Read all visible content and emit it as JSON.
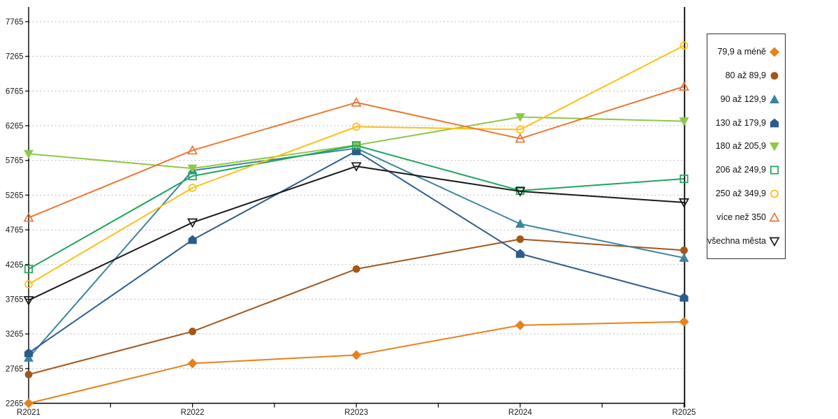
{
  "chart_data": {
    "type": "line",
    "title": "",
    "xlabel": "",
    "ylabel": "",
    "categories": [
      "R2021",
      "R2022",
      "R2023",
      "R2024",
      "R2025"
    ],
    "y_ticks": [
      2265,
      2765,
      3265,
      3765,
      4265,
      4765,
      5265,
      5765,
      6265,
      6765,
      7265,
      7765
    ],
    "ylim": [
      2265,
      7765
    ],
    "grid": "horizontal-dotted",
    "gridline_color": "#b9b9b9",
    "axis_color": "#000000",
    "legend_position": "right",
    "series": [
      {
        "name": "79,9 a méně",
        "marker": "diamond",
        "fill": "solid",
        "color": "#e8811c",
        "values": [
          2265,
          2840,
          2960,
          3390,
          3440
        ]
      },
      {
        "name": "80 až 89,9",
        "marker": "circle",
        "fill": "solid",
        "color": "#a3571c",
        "values": [
          2680,
          3300,
          4200,
          4630,
          4470
        ]
      },
      {
        "name": "90 až 129,9",
        "marker": "triangle-up",
        "fill": "solid",
        "color": "#3d84a0",
        "values": [
          2920,
          5620,
          5940,
          4850,
          4360
        ]
      },
      {
        "name": "130 až 179,9",
        "marker": "pentagon",
        "fill": "solid",
        "color": "#2d5c8c",
        "values": [
          2990,
          4620,
          5900,
          4420,
          3790
        ]
      },
      {
        "name": "180 až 205,9",
        "marker": "triangle-down",
        "fill": "solid",
        "color": "#8ec74a",
        "values": [
          5860,
          5650,
          5985,
          6390,
          6330
        ]
      },
      {
        "name": "206 až 249,9",
        "marker": "square-open",
        "fill": "hollow",
        "color": "#1ea65c",
        "values": [
          4200,
          5540,
          5980,
          5330,
          5500
        ]
      },
      {
        "name": "250 až 349,9",
        "marker": "circle-open",
        "fill": "hollow",
        "color": "#fcc010",
        "values": [
          3980,
          5370,
          6250,
          6210,
          7420
        ]
      },
      {
        "name": "více než 350",
        "marker": "triangle-up-open",
        "fill": "hollow",
        "color": "#ee7630",
        "values": [
          4940,
          5910,
          6600,
          6080,
          6830
        ]
      },
      {
        "name": "všechna města",
        "marker": "triangle-down-open",
        "fill": "hollow",
        "color": "#1a1a1a",
        "values": [
          3750,
          4870,
          5680,
          5320,
          5160
        ]
      }
    ]
  }
}
